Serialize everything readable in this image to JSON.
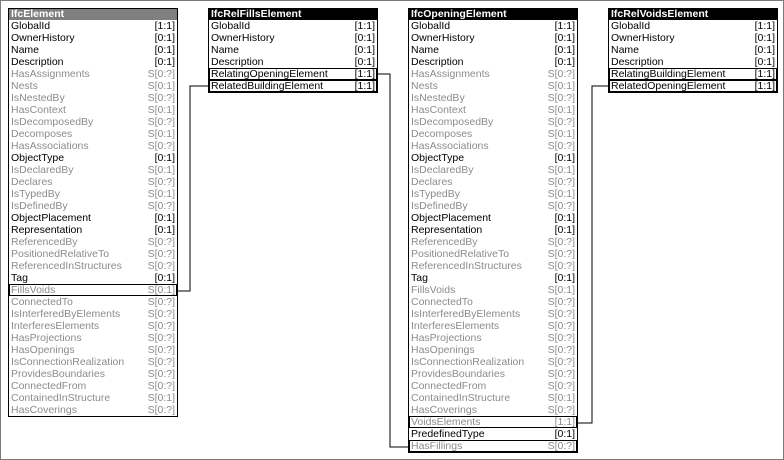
{
  "entities": {
    "ifc_element": {
      "title": "IfcElement",
      "attributes": [
        {
          "name": "GlobalId",
          "card": "[1:1]",
          "active": true
        },
        {
          "name": "OwnerHistory",
          "card": "[0:1]",
          "active": true
        },
        {
          "name": "Name",
          "card": "[0:1]",
          "active": true
        },
        {
          "name": "Description",
          "card": "[0:1]",
          "active": true
        },
        {
          "name": "HasAssignments",
          "card": "S[0:?]",
          "active": false
        },
        {
          "name": "Nests",
          "card": "S[0:1]",
          "active": false
        },
        {
          "name": "IsNestedBy",
          "card": "S[0:?]",
          "active": false
        },
        {
          "name": "HasContext",
          "card": "S[0:1]",
          "active": false
        },
        {
          "name": "IsDecomposedBy",
          "card": "S[0:?]",
          "active": false
        },
        {
          "name": "Decomposes",
          "card": "S[0:1]",
          "active": false
        },
        {
          "name": "HasAssociations",
          "card": "S[0:?]",
          "active": false
        },
        {
          "name": "ObjectType",
          "card": "[0:1]",
          "active": true
        },
        {
          "name": "IsDeclaredBy",
          "card": "S[0:1]",
          "active": false
        },
        {
          "name": "Declares",
          "card": "S[0:?]",
          "active": false
        },
        {
          "name": "IsTypedBy",
          "card": "S[0:1]",
          "active": false
        },
        {
          "name": "IsDefinedBy",
          "card": "S[0:?]",
          "active": false
        },
        {
          "name": "ObjectPlacement",
          "card": "[0:1]",
          "active": true
        },
        {
          "name": "Representation",
          "card": "[0:1]",
          "active": true
        },
        {
          "name": "ReferencedBy",
          "card": "S[0:?]",
          "active": false
        },
        {
          "name": "PositionedRelativeTo",
          "card": "S[0:?]",
          "active": false
        },
        {
          "name": "ReferencedInStructures",
          "card": "S[0:?]",
          "active": false
        },
        {
          "name": "Tag",
          "card": "[0:1]",
          "active": true
        },
        {
          "name": "FillsVoids",
          "card": "S[0:1]",
          "active": false,
          "boxed": true
        },
        {
          "name": "ConnectedTo",
          "card": "S[0:?]",
          "active": false
        },
        {
          "name": "IsInterferedByElements",
          "card": "S[0:?]",
          "active": false
        },
        {
          "name": "InterferesElements",
          "card": "S[0:?]",
          "active": false
        },
        {
          "name": "HasProjections",
          "card": "S[0:?]",
          "active": false
        },
        {
          "name": "HasOpenings",
          "card": "S[0:?]",
          "active": false
        },
        {
          "name": "IsConnectionRealization",
          "card": "S[0:?]",
          "active": false
        },
        {
          "name": "ProvidesBoundaries",
          "card": "S[0:?]",
          "active": false
        },
        {
          "name": "ConnectedFrom",
          "card": "S[0:?]",
          "active": false
        },
        {
          "name": "ContainedInStructure",
          "card": "S[0:1]",
          "active": false
        },
        {
          "name": "HasCoverings",
          "card": "S[0:?]",
          "active": false
        }
      ]
    },
    "ifc_rel_fills_element": {
      "title": "IfcRelFillsElement",
      "attributes": [
        {
          "name": "GlobalId",
          "card": "[1:1]",
          "active": true
        },
        {
          "name": "OwnerHistory",
          "card": "[0:1]",
          "active": true
        },
        {
          "name": "Name",
          "card": "[0:1]",
          "active": true
        },
        {
          "name": "Description",
          "card": "[0:1]",
          "active": true
        },
        {
          "name": "RelatingOpeningElement",
          "card": "[1:1]",
          "active": true,
          "boxed": true
        },
        {
          "name": "RelatedBuildingElement",
          "card": "[1:1]",
          "active": true,
          "boxed": true
        }
      ]
    },
    "ifc_opening_element": {
      "title": "IfcOpeningElement",
      "attributes": [
        {
          "name": "GlobalId",
          "card": "[1:1]",
          "active": true
        },
        {
          "name": "OwnerHistory",
          "card": "[0:1]",
          "active": true
        },
        {
          "name": "Name",
          "card": "[0:1]",
          "active": true
        },
        {
          "name": "Description",
          "card": "[0:1]",
          "active": true
        },
        {
          "name": "HasAssignments",
          "card": "S[0:?]",
          "active": false
        },
        {
          "name": "Nests",
          "card": "S[0:1]",
          "active": false
        },
        {
          "name": "IsNestedBy",
          "card": "S[0:?]",
          "active": false
        },
        {
          "name": "HasContext",
          "card": "S[0:1]",
          "active": false
        },
        {
          "name": "IsDecomposedBy",
          "card": "S[0:?]",
          "active": false
        },
        {
          "name": "Decomposes",
          "card": "S[0:1]",
          "active": false
        },
        {
          "name": "HasAssociations",
          "card": "S[0:?]",
          "active": false
        },
        {
          "name": "ObjectType",
          "card": "[0:1]",
          "active": true
        },
        {
          "name": "IsDeclaredBy",
          "card": "S[0:1]",
          "active": false
        },
        {
          "name": "Declares",
          "card": "S[0:?]",
          "active": false
        },
        {
          "name": "IsTypedBy",
          "card": "S[0:1]",
          "active": false
        },
        {
          "name": "IsDefinedBy",
          "card": "S[0:?]",
          "active": false
        },
        {
          "name": "ObjectPlacement",
          "card": "[0:1]",
          "active": true
        },
        {
          "name": "Representation",
          "card": "[0:1]",
          "active": true
        },
        {
          "name": "ReferencedBy",
          "card": "S[0:?]",
          "active": false
        },
        {
          "name": "PositionedRelativeTo",
          "card": "S[0:?]",
          "active": false
        },
        {
          "name": "ReferencedInStructures",
          "card": "S[0:?]",
          "active": false
        },
        {
          "name": "Tag",
          "card": "[0:1]",
          "active": true
        },
        {
          "name": "FillsVoids",
          "card": "S[0:1]",
          "active": false
        },
        {
          "name": "ConnectedTo",
          "card": "S[0:?]",
          "active": false
        },
        {
          "name": "IsInterferedByElements",
          "card": "S[0:?]",
          "active": false
        },
        {
          "name": "InterferesElements",
          "card": "S[0:?]",
          "active": false
        },
        {
          "name": "HasProjections",
          "card": "S[0:?]",
          "active": false
        },
        {
          "name": "HasOpenings",
          "card": "S[0:?]",
          "active": false
        },
        {
          "name": "IsConnectionRealization",
          "card": "S[0:?]",
          "active": false
        },
        {
          "name": "ProvidesBoundaries",
          "card": "S[0:?]",
          "active": false
        },
        {
          "name": "ConnectedFrom",
          "card": "S[0:?]",
          "active": false
        },
        {
          "name": "ContainedInStructure",
          "card": "S[0:1]",
          "active": false
        },
        {
          "name": "HasCoverings",
          "card": "S[0:?]",
          "active": false
        },
        {
          "name": "VoidsElements",
          "card": "[1:1]",
          "active": false,
          "boxed": true
        },
        {
          "name": "PredefinedType",
          "card": "[0:1]",
          "active": true
        },
        {
          "name": "HasFillings",
          "card": "S[0:?]",
          "active": false,
          "boxed": true
        }
      ]
    },
    "ifc_rel_voids_element": {
      "title": "IfcRelVoidsElement",
      "attributes": [
        {
          "name": "GlobalId",
          "card": "[1:1]",
          "active": true
        },
        {
          "name": "OwnerHistory",
          "card": "[0:1]",
          "active": true
        },
        {
          "name": "Name",
          "card": "[0:1]",
          "active": true
        },
        {
          "name": "Description",
          "card": "[0:1]",
          "active": true
        },
        {
          "name": "RelatingBuildingElement",
          "card": "[1:1]",
          "active": true,
          "boxed": true
        },
        {
          "name": "RelatedOpeningElement",
          "card": "[1:1]",
          "active": true,
          "boxed": true
        }
      ]
    }
  }
}
